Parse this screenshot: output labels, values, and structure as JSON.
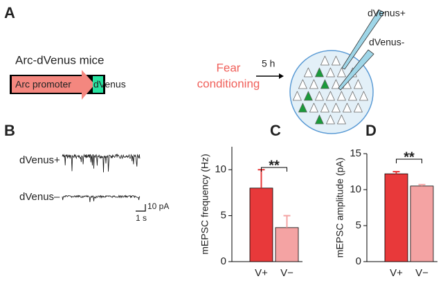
{
  "panel_labels": [
    "A",
    "B",
    "C",
    "D"
  ],
  "panel_a": {
    "mouse_label": "Arc-dVenus mice",
    "promoter": "Arc promoter",
    "reporter": "dVenus",
    "treatment": [
      "Fear",
      "conditioning"
    ],
    "delay": "5 h",
    "pipette_labels": [
      "dVenus+",
      "dVenus-"
    ]
  },
  "panel_b": {
    "traces": [
      "dVenus+",
      "dVenus–"
    ],
    "scale_y": "10 pA",
    "scale_x": "1 s"
  },
  "chart_data": [
    {
      "type": "bar",
      "ylabel": "mEPSC frequency (Hz)",
      "categories": [
        "V+",
        "V−"
      ],
      "values": [
        8,
        3.7
      ],
      "errors": [
        2.0,
        1.3
      ],
      "colors": [
        "#e8393a",
        "#f4a3a3"
      ],
      "ylim": [
        0,
        12.5
      ],
      "yticks": [
        0,
        5,
        10
      ],
      "significance": "**"
    },
    {
      "type": "bar",
      "ylabel": "mEPSC amplitude (pA)",
      "categories": [
        "V+",
        "V−"
      ],
      "values": [
        12.2,
        10.5
      ],
      "errors": [
        0.3,
        0.2
      ],
      "colors": [
        "#e8393a",
        "#f4a3a3"
      ],
      "ylim": [
        0,
        15
      ],
      "yticks": [
        0,
        5,
        10,
        15
      ],
      "significance": "**"
    }
  ]
}
